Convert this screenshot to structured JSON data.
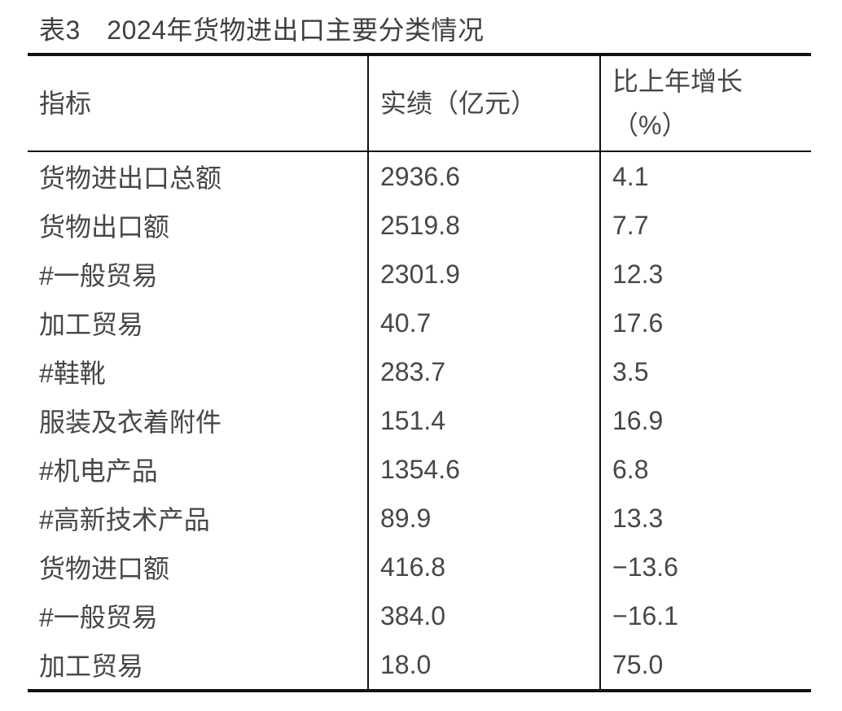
{
  "page": {
    "title": "表3　2024年货物进出口主要分类情况"
  },
  "table": {
    "columns": [
      "指标",
      "实绩（亿元）",
      "比上年增长\n（%）"
    ],
    "rows": [
      [
        "货物进出口总额",
        "2936.6",
        "4.1"
      ],
      [
        "货物出口额",
        "2519.8",
        "7.7"
      ],
      [
        "#一般贸易",
        "2301.9",
        "12.3"
      ],
      [
        "加工贸易",
        "40.7",
        "17.6"
      ],
      [
        "#鞋靴",
        "283.7",
        "3.5"
      ],
      [
        "服装及衣着附件",
        "151.4",
        "16.9"
      ],
      [
        "#机电产品",
        "1354.6",
        "6.8"
      ],
      [
        "#高新技术产品",
        "89.9",
        "13.3"
      ],
      [
        "货物进口额",
        "416.8",
        "−13.6"
      ],
      [
        "#一般贸易",
        "384.0",
        "−16.1"
      ],
      [
        "加工贸易",
        "18.0",
        "75.0"
      ]
    ]
  },
  "colors": {
    "background": "#ffffff",
    "border": "#111111",
    "title_text": "#3f3f3f",
    "body_text": "#474747"
  },
  "chart_data": {
    "type": "table",
    "title": "表3 2024年货物进出口主要分类情况",
    "columns": [
      "指标",
      "实绩（亿元）",
      "比上年增长（%）"
    ],
    "rows": [
      [
        "货物进出口总额",
        2936.6,
        4.1
      ],
      [
        "货物出口额",
        2519.8,
        7.7
      ],
      [
        "#一般贸易",
        2301.9,
        12.3
      ],
      [
        "加工贸易",
        40.7,
        17.6
      ],
      [
        "#鞋靴",
        283.7,
        3.5
      ],
      [
        "服装及衣着附件",
        151.4,
        16.9
      ],
      [
        "#机电产品",
        1354.6,
        6.8
      ],
      [
        "#高新技术产品",
        89.9,
        13.3
      ],
      [
        "货物进口额",
        416.8,
        -13.6
      ],
      [
        "#一般贸易",
        384.0,
        -16.1
      ],
      [
        "加工贸易",
        18.0,
        75.0
      ]
    ]
  }
}
